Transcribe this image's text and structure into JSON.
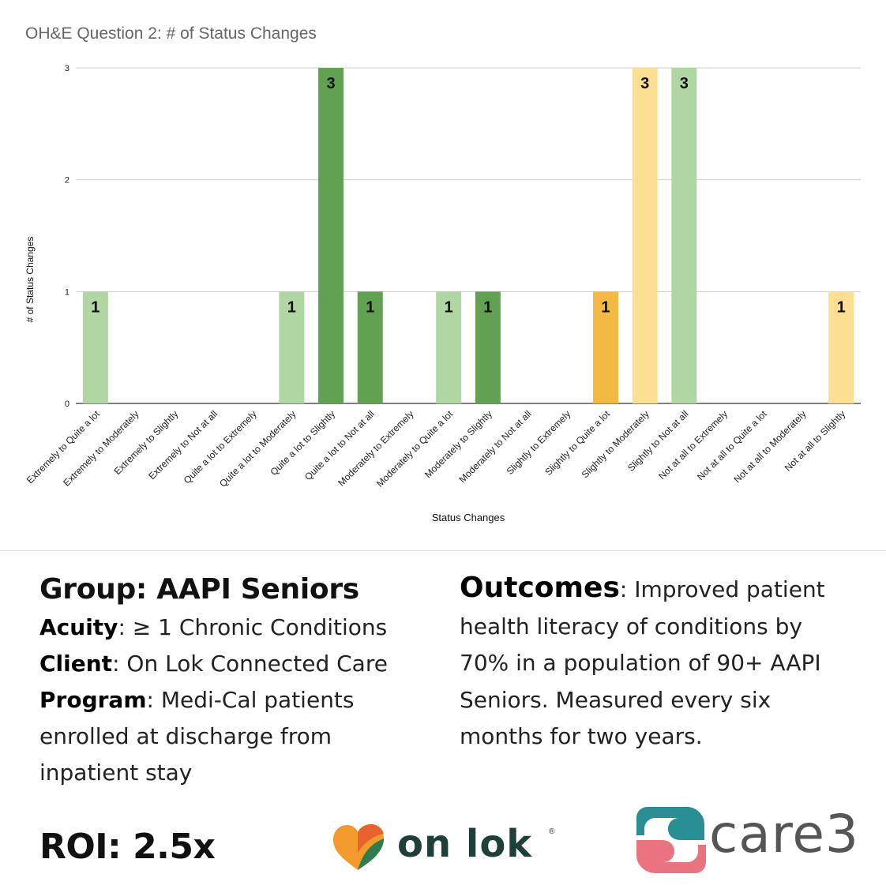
{
  "chart_data": {
    "type": "bar",
    "title": "OH&E Question 2: # of Status Changes",
    "xlabel": "Status Changes",
    "ylabel": "# of Status Changes",
    "ylim": [
      0,
      3
    ],
    "yticks": [
      "0",
      "1",
      "2",
      "3"
    ],
    "grid": true,
    "categories": [
      "Extremely to Quite a lot",
      "Extremely to Moderately",
      "Extremely to Slightly",
      "Extremely to Not at all",
      "Quite a lot to Extremely",
      "Quite a lot to Moderately",
      "Quite a lot to Slightly",
      "Quite a lot to Not at all",
      "Moderately to Extremely",
      "Moderately to Quite a lot",
      "Moderately to Slightly",
      "Moderately to Not at all",
      "Slightly to Extremely",
      "Slightly to Quite a lot",
      "Slightly to Moderately",
      "Slightly to Not at all",
      "Not at all to Extremely",
      "Not at all to Quite a lot",
      "Not at all to Moderately",
      "Not at all to Slightly"
    ],
    "values": [
      1,
      0,
      0,
      0,
      0,
      1,
      3,
      1,
      0,
      1,
      1,
      0,
      0,
      1,
      3,
      3,
      0,
      0,
      0,
      1
    ],
    "bar_colors": [
      "#b0d6a3",
      "",
      "",
      "",
      "",
      "#b0d6a3",
      "#62a151",
      "#62a151",
      "",
      "#b0d6a3",
      "#62a151",
      "",
      "",
      "#f4b942",
      "#fddf94",
      "#b0d6a3",
      "",
      "",
      "",
      "#fddf94"
    ]
  },
  "info": {
    "group_title": "Group: AAPI Seniors",
    "acuity_label": "Acuity",
    "acuity_symbol": "≥",
    "acuity_value": "1 Chronic Conditions",
    "client_label": "Client",
    "client_value": "On Lok Connected Care",
    "program_label": "Program",
    "program_line1": "Medi-Cal patients",
    "program_line2": "enrolled at discharge from",
    "program_line3": "inpatient stay",
    "outcomes_label": "Outcomes",
    "outcomes_line1": "Improved patient",
    "outcomes_line2": "health literacy of conditions by",
    "outcomes_line3": "70% in a population of 90+ AAPI",
    "outcomes_line4": "Seniors. Measured every six",
    "outcomes_line5": "months for two years.",
    "roi": "ROI: 2.5x"
  },
  "logos": {
    "onlok_text": "on lok",
    "onlok_reg": "®",
    "care3_text": "care3",
    "colors": {
      "onlok_orange": "#f29a2e",
      "onlok_green": "#2f7d4f",
      "care3_teal": "#2a8f94",
      "care3_pink": "#e9747f"
    }
  }
}
